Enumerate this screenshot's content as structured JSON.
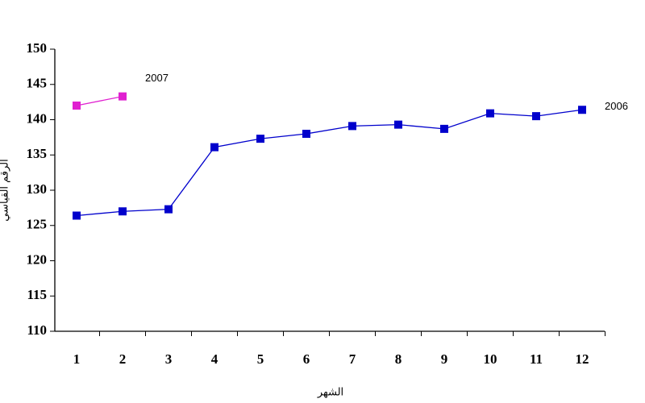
{
  "chart_data": {
    "type": "line",
    "x_label": "الشهر",
    "y_label": "الرقم القياسي",
    "categories": [
      "1",
      "2",
      "3",
      "4",
      "5",
      "6",
      "7",
      "8",
      "9",
      "10",
      "11",
      "12"
    ],
    "series": [
      {
        "name": "2006",
        "color": "#0000cc",
        "values": [
          126.4,
          127.0,
          127.3,
          136.1,
          137.3,
          138.0,
          139.1,
          139.3,
          138.7,
          140.9,
          140.5,
          141.4
        ]
      },
      {
        "name": "2007",
        "color": "#e020d0",
        "values": [
          142.0,
          143.3,
          null,
          null,
          null,
          null,
          null,
          null,
          null,
          null,
          null,
          null
        ]
      }
    ],
    "ylim": [
      110,
      150
    ],
    "yticks": [
      110,
      115,
      120,
      125,
      130,
      135,
      140,
      145,
      150
    ],
    "grid": false
  }
}
